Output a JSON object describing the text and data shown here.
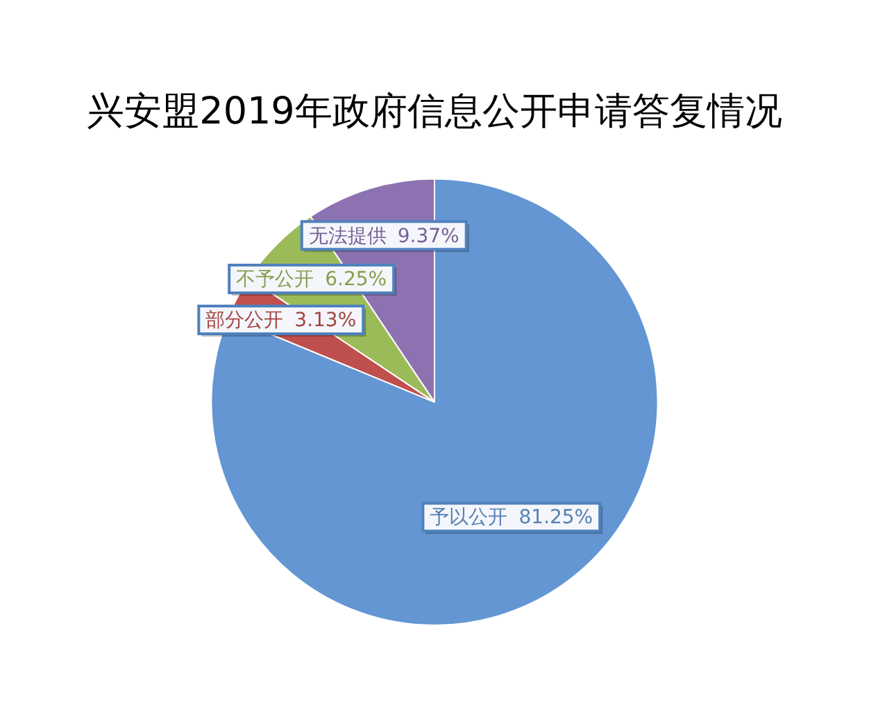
{
  "chart_data": {
    "type": "pie",
    "title": "兴安盟2019年政府信息公开申请答复情况",
    "categories": [
      "予以公开",
      "部分公开",
      "不予公开",
      "无法提供"
    ],
    "values": [
      81.25,
      3.13,
      6.25,
      9.37
    ],
    "colors": [
      "#6396d2",
      "#c0504d",
      "#9bbb59",
      "#8d72b1"
    ],
    "value_labels": [
      "81.25%",
      "3.13%",
      "6.25%",
      "9.37%"
    ]
  }
}
